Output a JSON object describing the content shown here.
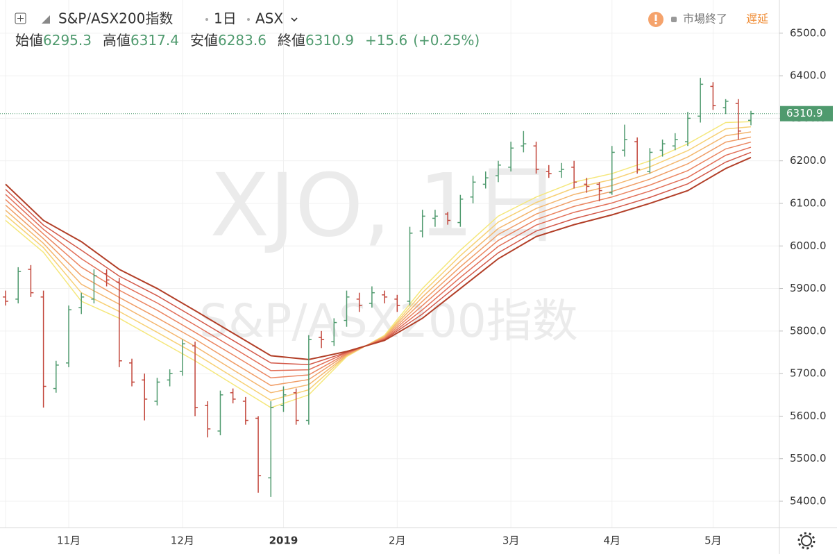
{
  "header": {
    "symbol": "S&P/ASX200指数",
    "interval": "1日",
    "exchange": "ASX",
    "status": "市場終了",
    "delay": "遅延",
    "legend": {
      "open_label": "始値",
      "open": 6295.3,
      "high_label": "高値",
      "high": 6317.4,
      "low_label": "安値",
      "low": 6283.6,
      "close_label": "終値",
      "close": 6310.9,
      "change": "+15.6",
      "change_pct": "(+0.25%)"
    },
    "watermark": "XJO, 1日",
    "watermark_sub": "S&P/ASX200指数"
  },
  "chart_data": {
    "type": "ohlc",
    "categories": [
      "",
      null,
      null,
      null,
      null,
      "11月",
      null,
      null,
      null,
      null,
      null,
      null,
      null,
      null,
      "12月",
      null,
      null,
      null,
      null,
      null,
      null,
      null,
      "2019",
      null,
      null,
      null,
      null,
      null,
      null,
      null,
      null,
      "2月",
      null,
      null,
      null,
      null,
      null,
      null,
      null,
      null,
      "3月",
      null,
      null,
      null,
      null,
      null,
      null,
      null,
      "4月",
      null,
      null,
      null,
      null,
      null,
      null,
      null,
      "5月",
      null,
      null,
      null
    ],
    "open": [
      5880,
      5875,
      5945,
      5880,
      5665,
      5725,
      5855,
      5875,
      5935,
      5915,
      5725,
      5685,
      5635,
      5685,
      5705,
      5765,
      5625,
      5565,
      5655,
      5635,
      5595,
      5455,
      5625,
      5655,
      5590,
      5785,
      5775,
      5825,
      5875,
      5865,
      5885,
      5875,
      5870,
      6035,
      6065,
      6075,
      6055,
      6115,
      6145,
      6165,
      6185,
      6235,
      6235,
      6175,
      6175,
      6185,
      6145,
      6145,
      6125,
      6225,
      6245,
      6175,
      6225,
      6235,
      6245,
      6305,
      6375,
      6325,
      6335,
      6295.3
    ],
    "high": [
      5895,
      5950,
      5955,
      5895,
      5730,
      5860,
      5890,
      5945,
      5945,
      5925,
      5735,
      5700,
      5690,
      5710,
      5780,
      5775,
      5635,
      5660,
      5665,
      5645,
      5600,
      5635,
      5670,
      5665,
      5790,
      5800,
      5830,
      5895,
      5890,
      5905,
      5895,
      5885,
      6045,
      6085,
      6085,
      6080,
      6120,
      6165,
      6175,
      6200,
      6245,
      6270,
      6245,
      6190,
      6195,
      6200,
      6160,
      6150,
      6235,
      6285,
      6255,
      6230,
      6250,
      6265,
      6315,
      6395,
      6385,
      6345,
      6345,
      6317.4
    ],
    "low": [
      5860,
      5865,
      5880,
      5620,
      5655,
      5715,
      5840,
      5865,
      5905,
      5715,
      5670,
      5590,
      5625,
      5670,
      5695,
      5600,
      5550,
      5555,
      5630,
      5580,
      5420,
      5410,
      5610,
      5580,
      5580,
      5760,
      5765,
      5810,
      5845,
      5855,
      5865,
      5845,
      5860,
      6020,
      6045,
      6050,
      6045,
      6100,
      6135,
      6150,
      6175,
      6220,
      6170,
      6160,
      6160,
      6135,
      6125,
      6105,
      6120,
      6210,
      6170,
      6170,
      6210,
      6225,
      6235,
      6290,
      6320,
      6310,
      6250,
      6283.6
    ],
    "close": [
      5870,
      5940,
      5890,
      5670,
      5720,
      5850,
      5880,
      5930,
      5920,
      5730,
      5680,
      5640,
      5680,
      5700,
      5770,
      5620,
      5570,
      5650,
      5640,
      5590,
      5460,
      5620,
      5650,
      5590,
      5780,
      5780,
      5820,
      5880,
      5860,
      5890,
      5880,
      5860,
      6030,
      6070,
      6070,
      6060,
      6110,
      6150,
      6160,
      6190,
      6230,
      6240,
      6180,
      6170,
      6180,
      6150,
      6140,
      6130,
      6220,
      6250,
      6180,
      6220,
      6240,
      6250,
      6300,
      6380,
      6330,
      6340,
      6270,
      6310.9
    ],
    "up_color": "#4f9a6e",
    "down_color": "#c2453a",
    "ma_x": [
      0,
      3,
      6,
      9,
      12,
      15,
      18,
      21,
      24,
      27,
      30,
      33,
      36,
      39,
      42,
      45,
      48,
      51,
      54,
      57,
      59
    ],
    "ma_series": [
      {
        "color": "#f5e77a",
        "values": [
          6060,
          5985,
          5870,
          5830,
          5780,
          5730,
          5675,
          5620,
          5650,
          5740,
          5790,
          5900,
          5990,
          6070,
          6115,
          6150,
          6170,
          6200,
          6240,
          6290,
          6292
        ]
      },
      {
        "color": "#f7d074",
        "values": [
          6072,
          5996,
          5890,
          5846,
          5797,
          5747,
          5692,
          5637,
          5662,
          5742,
          5788,
          5890,
          5977,
          6056,
          6102,
          6136,
          6156,
          6186,
          6224,
          6275,
          6280
        ]
      },
      {
        "color": "#f4b66d",
        "values": [
          6084,
          6006,
          5910,
          5863,
          5814,
          5764,
          5709,
          5655,
          5674,
          5743,
          5787,
          5880,
          5964,
          6041,
          6088,
          6121,
          6142,
          6171,
          6209,
          6259,
          6268
        ]
      },
      {
        "color": "#f09d66",
        "values": [
          6096,
          6017,
          5930,
          5879,
          5831,
          5781,
          5726,
          5672,
          5686,
          5745,
          5785,
          5870,
          5951,
          6027,
          6075,
          6107,
          6128,
          6157,
          6193,
          6244,
          6256
        ]
      },
      {
        "color": "#eb8560",
        "values": [
          6109,
          6028,
          5950,
          5896,
          5849,
          5797,
          5744,
          5690,
          5697,
          5747,
          5783,
          5860,
          5939,
          6013,
          6062,
          6093,
          6115,
          6143,
          6177,
          6228,
          6244
        ]
      },
      {
        "color": "#e26e57",
        "values": [
          6121,
          6039,
          5970,
          5912,
          5866,
          5814,
          5761,
          5707,
          5709,
          5749,
          5781,
          5850,
          5926,
          5999,
          6049,
          6079,
          6101,
          6129,
          6161,
          6213,
          6232
        ]
      },
      {
        "color": "#d35848",
        "values": [
          6133,
          6049,
          5990,
          5929,
          5883,
          5831,
          5778,
          5725,
          5721,
          5750,
          5780,
          5840,
          5913,
          5984,
          6035,
          6064,
          6087,
          6114,
          6146,
          6197,
          6220
        ]
      },
      {
        "color": "#b23f28",
        "values": [
          6145,
          6060,
          6010,
          5945,
          5900,
          5848,
          5795,
          5742,
          5733,
          5752,
          5778,
          5830,
          5900,
          5970,
          6022,
          6050,
          6073,
          6100,
          6130,
          6182,
          6208
        ]
      }
    ],
    "last_price": 6310.9,
    "last_color": "#4f9a6e",
    "ylim": [
      5338,
      6578
    ],
    "yticks": [
      {
        "value": 5400,
        "label": "5400.0"
      },
      {
        "value": 5500,
        "label": "5500.0"
      },
      {
        "value": 5600,
        "label": "5600.0"
      },
      {
        "value": 5700,
        "label": "5700.0"
      },
      {
        "value": 5800,
        "label": "5800.0"
      },
      {
        "value": 5900,
        "label": "5900.0"
      },
      {
        "value": 6000,
        "label": "6000.0"
      },
      {
        "value": 6100,
        "label": "6100.0"
      },
      {
        "value": 6200,
        "label": "6200.0"
      },
      {
        "value": 6300,
        "label": "6300.0"
      },
      {
        "value": 6400,
        "label": "6400.0"
      },
      {
        "value": 6500,
        "label": "6500.0"
      }
    ],
    "grid": true
  }
}
